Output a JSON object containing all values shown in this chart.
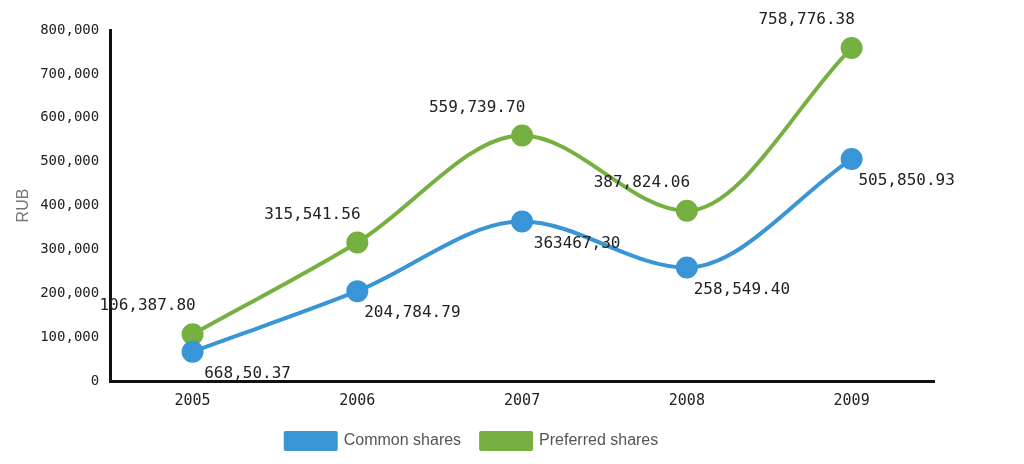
{
  "chart_data": {
    "type": "line",
    "ylabel": "RUB",
    "categories": [
      "2005",
      "2006",
      "2007",
      "2008",
      "2009"
    ],
    "series": [
      {
        "name": "Common shares",
        "color": "#3a95d6",
        "values": [
          66850.37,
          204784.79,
          363467.3,
          258549.4,
          505850.93
        ],
        "value_labels": [
          "668,50.37",
          "204,784.79",
          "363467,30",
          "258,549.40",
          "505,850.93"
        ]
      },
      {
        "name": "Preferred shares",
        "color": "#76b041",
        "values": [
          106387.8,
          315541.56,
          559739.7,
          387824.06,
          758776.38
        ],
        "value_labels": [
          "106,387.80",
          "315,541.56",
          "559,739.70",
          "387,824.06",
          "758,776.38"
        ]
      }
    ],
    "ylim": [
      0,
      800000
    ],
    "yticks": [
      0,
      {
        "value": 100000,
        "label": "100,000"
      },
      {
        "value": 200000,
        "label": "200,000"
      },
      {
        "value": 300000,
        "label": "300,000"
      },
      {
        "value": 400000,
        "label": "400,000"
      },
      {
        "value": 500000,
        "label": "500,000"
      },
      {
        "value": 600000,
        "label": "600,000"
      },
      {
        "value": 700000,
        "label": "700,000"
      },
      {
        "value": 800000,
        "label": "800,000"
      }
    ],
    "marker": "circle",
    "line_style": "solid",
    "legend": "bottom",
    "grid": false
  }
}
